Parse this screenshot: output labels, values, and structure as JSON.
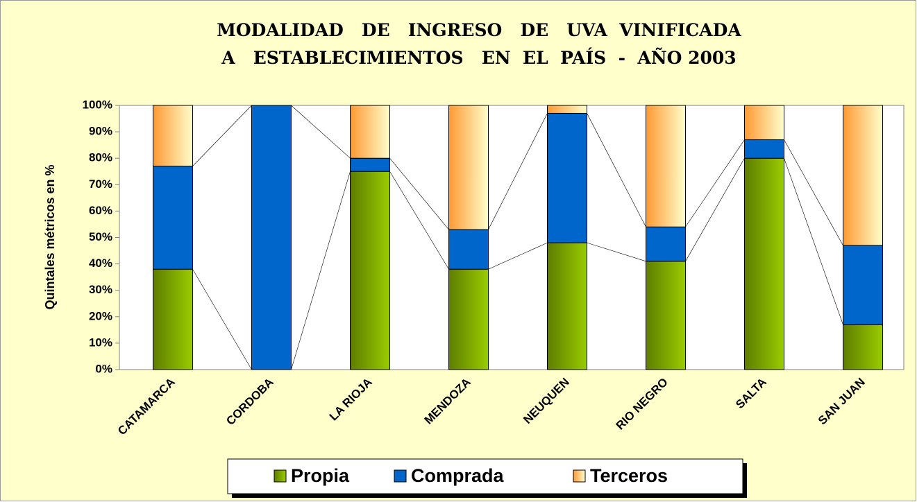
{
  "chart_data": {
    "type": "stacked_bar_100",
    "title": [
      "MODALIDAD   DE   INGRESO   DE   UVA  VINIFICADA",
      "A   ESTABLECIMIENTOS   EN  EL  PAÍS  -  AÑO 2003"
    ],
    "y_label": "Quintales métricos en %",
    "categories": [
      "CATAMARCA",
      "CORDOBA",
      "LA RIOJA",
      "MENDOZA",
      "NEUQUEN",
      "RIO NEGRO",
      "SALTA",
      "SAN JUAN"
    ],
    "series": [
      {
        "name": "Propia",
        "color": "#99cc00",
        "values": [
          38,
          0,
          75,
          38,
          48,
          41,
          80,
          17
        ]
      },
      {
        "name": "Comprada",
        "color": "#0066cc",
        "values": [
          39,
          100,
          5,
          15,
          49,
          13,
          7,
          30
        ]
      },
      {
        "name": "Terceros",
        "color": "#ff9933",
        "values": [
          23,
          0,
          20,
          47,
          3,
          46,
          13,
          53
        ]
      }
    ],
    "ylim": [
      0,
      100
    ],
    "yticks": [
      {
        "value": 0,
        "label": "0%"
      },
      {
        "value": 10,
        "label": "10%"
      },
      {
        "value": 20,
        "label": "20%"
      },
      {
        "value": 30,
        "label": "30%"
      },
      {
        "value": 40,
        "label": "40%"
      },
      {
        "value": 50,
        "label": "50%"
      },
      {
        "value": 60,
        "label": "60%"
      },
      {
        "value": 70,
        "label": "70%"
      },
      {
        "value": 80,
        "label": "80%"
      },
      {
        "value": 90,
        "label": "90%"
      },
      {
        "value": 100,
        "label": "100%"
      }
    ],
    "legend": "bottom"
  }
}
